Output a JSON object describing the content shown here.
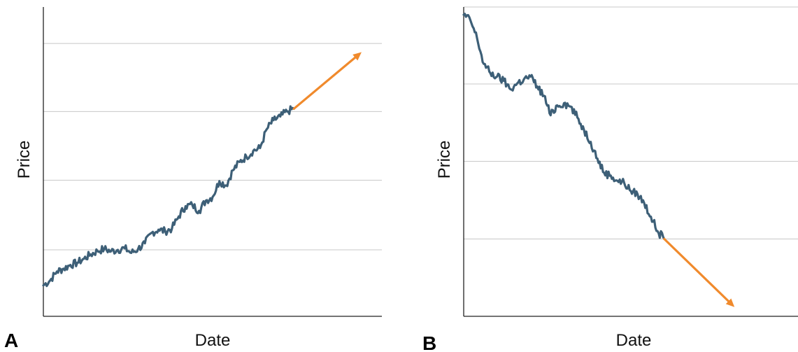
{
  "colors": {
    "series": "#3d5f77",
    "trend": "#f08a2c",
    "grid": "#c8c8c8",
    "axis": "#222222"
  },
  "chart_data": [
    {
      "panel_label": "A",
      "type": "line",
      "xlabel": "Date",
      "ylabel": "Price",
      "xlim": [
        0,
        100
      ],
      "ylim": [
        0,
        100
      ],
      "grid": "horizontal",
      "gridlines_y": [
        21.5,
        44,
        66.2,
        88.2
      ],
      "series": [
        {
          "values": [
            [
              0,
              10
            ],
            [
              2,
              11.6
            ],
            [
              4,
              14.5
            ],
            [
              6,
              15.4
            ],
            [
              8,
              16.6
            ],
            [
              10,
              17.3
            ],
            [
              12,
              18.6
            ],
            [
              14,
              20.0
            ],
            [
              16,
              21.1
            ],
            [
              18,
              21.8
            ],
            [
              20,
              21.0
            ],
            [
              22,
              21.5
            ],
            [
              24,
              22.0
            ],
            [
              26,
              20.5
            ],
            [
              28,
              21.8
            ],
            [
              30,
              23.6
            ],
            [
              32,
              27.0
            ],
            [
              34,
              28.0
            ],
            [
              36,
              27.5
            ],
            [
              38,
              28.4
            ],
            [
              40,
              32.3
            ],
            [
              42,
              35.6
            ],
            [
              44,
              36.0
            ],
            [
              46,
              34.1
            ],
            [
              48,
              37.4
            ],
            [
              50,
              38.6
            ],
            [
              52,
              43.7
            ],
            [
              54,
              42.3
            ],
            [
              56,
              47.2
            ],
            [
              58,
              49.9
            ],
            [
              60,
              51.6
            ],
            [
              62,
              53.5
            ],
            [
              64,
              54.4
            ],
            [
              66,
              60.5
            ],
            [
              68,
              63.4
            ],
            [
              70,
              64.6
            ],
            [
              72,
              66.2
            ],
            [
              74,
              67.1
            ]
          ]
        }
      ],
      "trend_arrow": {
        "from": [
          74,
          67.1
        ],
        "to": [
          94,
          85.4
        ]
      }
    },
    {
      "panel_label": "B",
      "type": "line",
      "xlabel": "Date",
      "ylabel": "Price",
      "xlim": [
        0,
        100
      ],
      "ylim": [
        0,
        100
      ],
      "grid": "horizontal",
      "gridlines_y": [
        25.0,
        50.1,
        75.1,
        100
      ],
      "series": [
        {
          "values": [
            [
              0,
              97.5
            ],
            [
              2,
              95.7
            ],
            [
              4,
              89.9
            ],
            [
              6,
              81.6
            ],
            [
              8,
              78.6
            ],
            [
              10,
              77.5
            ],
            [
              12,
              76.1
            ],
            [
              14,
              73.4
            ],
            [
              16,
              75.3
            ],
            [
              18,
              76.6
            ],
            [
              20,
              77.5
            ],
            [
              22,
              74.3
            ],
            [
              24,
              71.3
            ],
            [
              26,
              65.0
            ],
            [
              28,
              68.2
            ],
            [
              30,
              68.9
            ],
            [
              32,
              67.8
            ],
            [
              34,
              64.3
            ],
            [
              36,
              60.2
            ],
            [
              38,
              56.4
            ],
            [
              40,
              51.0
            ],
            [
              42,
              46.4
            ],
            [
              44,
              45.5
            ],
            [
              46,
              43.8
            ],
            [
              48,
              43.2
            ],
            [
              50,
              40.5
            ],
            [
              52,
              39.5
            ],
            [
              54,
              36.6
            ],
            [
              56,
              32.2
            ],
            [
              58,
              27.5
            ],
            [
              60,
              25.0
            ]
          ]
        }
      ],
      "trend_arrow": {
        "from": [
          60,
          25.0
        ],
        "to": [
          81,
          3.0
        ]
      }
    }
  ]
}
